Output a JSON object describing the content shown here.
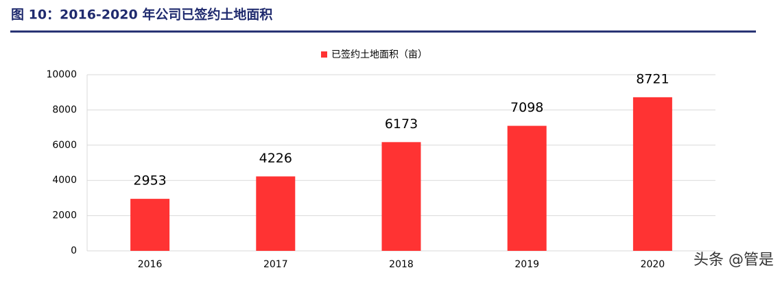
{
  "chart_data": {
    "type": "bar",
    "title": "图 10：2016-2020 年公司已签约土地面积",
    "categories": [
      "2016",
      "2017",
      "2018",
      "2019",
      "2020"
    ],
    "series": [
      {
        "name": "已签约土地面积（亩）",
        "color": "#ff3333",
        "values": [
          2953,
          4226,
          6173,
          7098,
          8721
        ]
      }
    ],
    "ylim": [
      0,
      10000
    ],
    "yticks": [
      0,
      2000,
      4000,
      6000,
      8000,
      10000
    ],
    "grid": true,
    "legend": "top",
    "watermark": "头条 @管是"
  }
}
